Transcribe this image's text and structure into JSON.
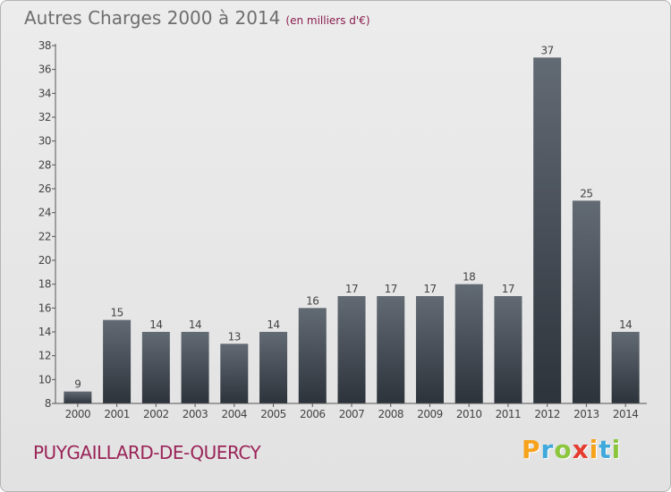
{
  "header": {
    "title": "Autres Charges 2000 à 2014",
    "subtitle": "(en milliers d'€)"
  },
  "footer": {
    "commune": "PUYGAILLARD-DE-QUERCY",
    "brand_letters": [
      "P",
      "r",
      "o",
      "x",
      "i",
      "t",
      "i"
    ],
    "brand_colors": [
      "#f7a21b",
      "#3fa9dc",
      "#8cc63f",
      "#e43d30",
      "#f7a21b",
      "#3fa9dc",
      "#8cc63f"
    ]
  },
  "colors": {
    "bar_top": "#626a74",
    "bar_bottom": "#2d333b",
    "axis": "#555555",
    "title": "#6e6e6e",
    "commune": "#9a2458"
  },
  "chart_data": {
    "type": "bar",
    "title": "Autres Charges 2000 à 2014",
    "subtitle": "(en milliers d'€)",
    "categories": [
      "2000",
      "2001",
      "2002",
      "2003",
      "2004",
      "2005",
      "2006",
      "2007",
      "2008",
      "2009",
      "2010",
      "2011",
      "2012",
      "2013",
      "2014"
    ],
    "values": [
      9,
      15,
      14,
      14,
      13,
      14,
      16,
      17,
      17,
      17,
      18,
      17,
      37,
      25,
      14
    ],
    "data_labels": [
      "9",
      "15",
      "14",
      "14",
      "13",
      "14",
      "16",
      "17",
      "17",
      "17",
      "18",
      "17",
      "37",
      "25",
      "14"
    ],
    "ylim": [
      8,
      38
    ],
    "yticks": [
      8,
      10,
      12,
      14,
      16,
      18,
      20,
      22,
      24,
      26,
      28,
      30,
      32,
      34,
      36,
      38
    ],
    "xlabel": "",
    "ylabel": "",
    "grid": false,
    "legend": "none"
  }
}
